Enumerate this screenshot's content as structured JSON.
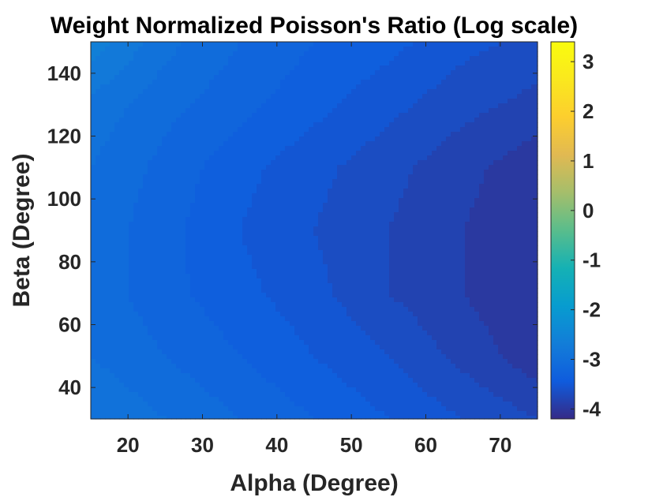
{
  "chart_data": {
    "type": "heatmap",
    "subtype": "filled-contour",
    "title": "Weight Normalized Poisson's Ratio (Log scale)",
    "xlabel": "Alpha (Degree)",
    "ylabel": "Beta (Degree)",
    "xlim": [
      15,
      75
    ],
    "ylim": [
      30,
      150
    ],
    "xticks": [
      20,
      30,
      40,
      50,
      60,
      70
    ],
    "yticks": [
      40,
      60,
      80,
      100,
      120,
      140
    ],
    "colorbar": {
      "colormap": "parula",
      "range": [
        -4.2,
        3.4
      ],
      "ticks": [
        -4,
        -3,
        -2,
        -1,
        0,
        1,
        2,
        3
      ],
      "tick_labels": [
        "-4",
        "-3",
        "-2",
        "-1",
        "0",
        "1",
        "2",
        "3"
      ]
    },
    "grid": false,
    "x": [
      15,
      25,
      35,
      45,
      55,
      65,
      75
    ],
    "y": [
      30,
      50,
      70,
      90,
      110,
      130,
      150
    ],
    "z": [
      [
        -2.85,
        -3.0,
        -3.15,
        -3.3,
        -3.45,
        -3.6,
        -3.75
      ],
      [
        -3.0,
        -3.15,
        -3.3,
        -3.45,
        -3.6,
        -3.8,
        -4.0
      ],
      [
        -3.05,
        -3.25,
        -3.4,
        -3.55,
        -3.75,
        -3.9,
        -4.05
      ],
      [
        -3.05,
        -3.25,
        -3.45,
        -3.6,
        -3.75,
        -3.9,
        -4.05
      ],
      [
        -3.0,
        -3.2,
        -3.4,
        -3.55,
        -3.7,
        -3.85,
        -4.0
      ],
      [
        -2.9,
        -3.1,
        -3.25,
        -3.4,
        -3.55,
        -3.7,
        -3.8
      ],
      [
        -2.6,
        -2.95,
        -3.15,
        -3.3,
        -3.4,
        -3.55,
        -3.65
      ]
    ]
  }
}
